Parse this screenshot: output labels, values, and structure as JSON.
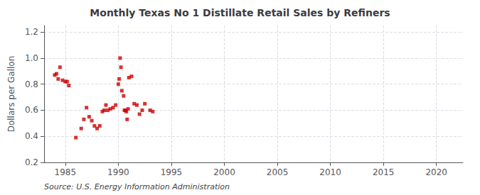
{
  "chart_data": {
    "type": "scatter",
    "title": "Monthly Texas No 1 Distillate Retail Sales by Refiners",
    "ylabel": "Dollars per Gallon",
    "annotation": "Source: U.S. Energy Information Administration",
    "color": "#cc0000",
    "marker": "square",
    "grid": true,
    "xlim": [
      1983.0,
      2022.5
    ],
    "ylim": [
      0.2,
      1.25
    ],
    "xticks": [
      1985,
      1990,
      1995,
      2000,
      2005,
      2010,
      2015,
      2020
    ],
    "yticks": [
      0.2,
      0.4,
      0.6,
      0.8,
      {
        "value": 1.0,
        "label": "1.0"
      },
      1.2
    ],
    "x": [
      1984.0,
      1984.17,
      1984.33,
      1984.5,
      1984.75,
      1985.0,
      1985.17,
      1985.33,
      1986.0,
      1986.5,
      1986.75,
      1987.0,
      1987.25,
      1987.5,
      1987.75,
      1988.0,
      1988.25,
      1988.5,
      1988.67,
      1988.83,
      1989.0,
      1989.25,
      1989.5,
      1989.75,
      1990.0,
      1990.08,
      1990.17,
      1990.25,
      1990.33,
      1990.5,
      1990.58,
      1990.67,
      1990.75,
      1990.83,
      1990.92,
      1991.0,
      1991.25,
      1991.5,
      1991.75,
      1992.0,
      1992.25,
      1992.5,
      1993.0,
      1993.25
    ],
    "values": [
      0.87,
      0.88,
      0.84,
      0.93,
      0.83,
      0.82,
      0.82,
      0.79,
      0.39,
      0.46,
      0.53,
      0.62,
      0.55,
      0.52,
      0.48,
      0.46,
      0.48,
      0.59,
      0.6,
      0.64,
      0.6,
      0.61,
      0.62,
      0.64,
      0.8,
      0.84,
      1.0,
      0.93,
      0.75,
      0.71,
      0.6,
      0.6,
      0.59,
      0.53,
      0.61,
      0.85,
      0.86,
      0.65,
      0.64,
      0.57,
      0.6,
      0.65,
      0.6,
      0.59
    ]
  }
}
